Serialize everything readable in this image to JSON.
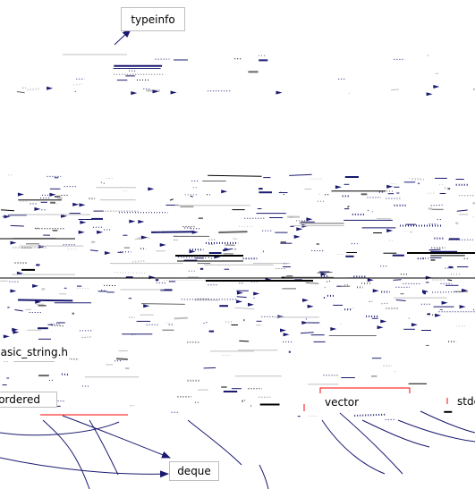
{
  "diagram": {
    "kind": "include dependency graph",
    "colors": {
      "edge": "#191970",
      "node_border": "#bfbfbf",
      "highlight_border": "#ff0000",
      "background": "#ffffff"
    },
    "nodes": {
      "typeinfo": "typeinfo",
      "basic_string": "basic_string.h",
      "unordered": "unordered",
      "vector": "vector",
      "stdexcept": "stdexcept",
      "deque": "deque"
    }
  }
}
